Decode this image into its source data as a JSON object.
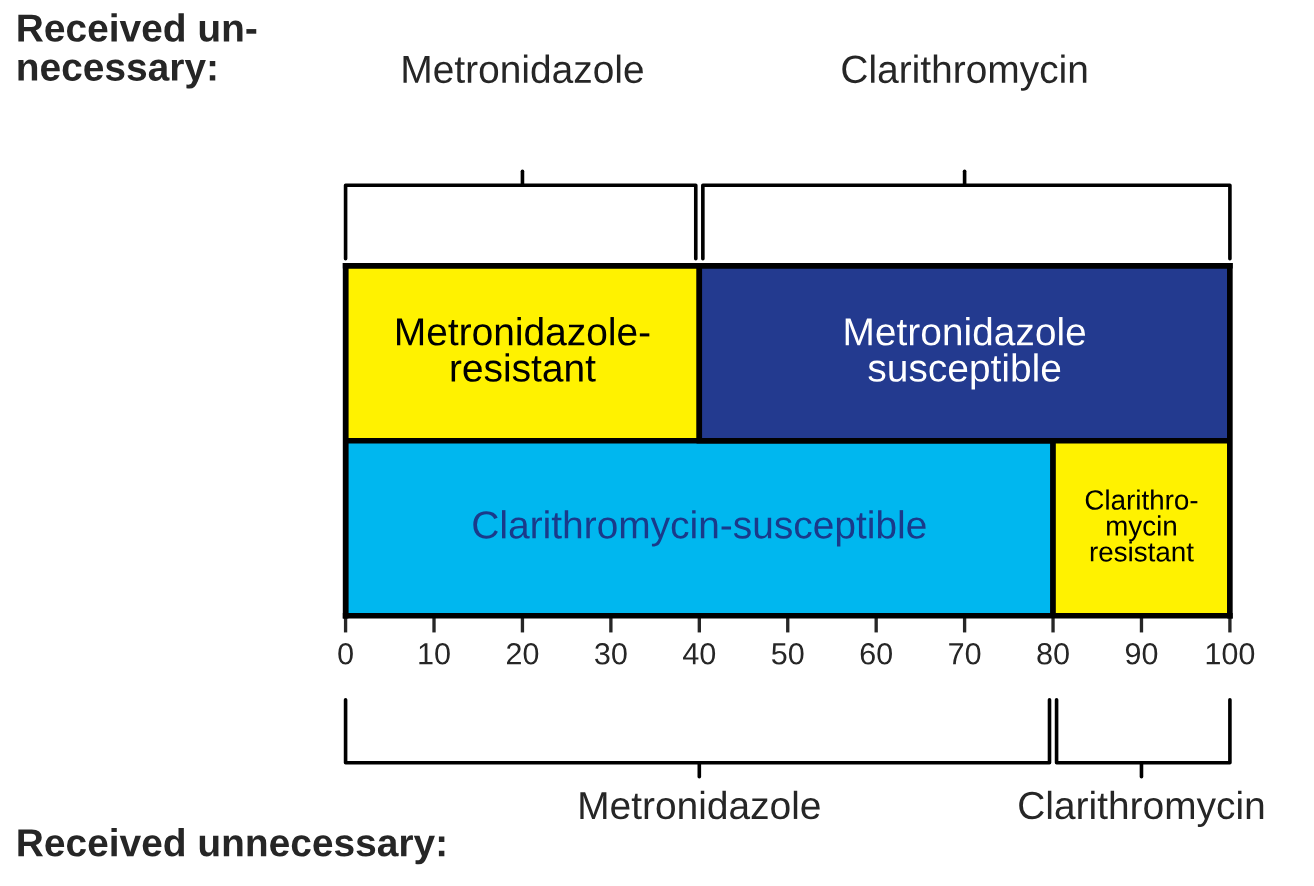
{
  "chart_data": {
    "type": "bar",
    "orientation": "horizontal",
    "stacked": true,
    "categories": [
      null,
      null
    ],
    "series": [
      {
        "colors": [
          "#fff200",
          "#00b7ef"
        ],
        "values": [
          40,
          80
        ],
        "value_labels": [
          "Metronidazole-\nresistant",
          "Clarithromycin-susceptible"
        ]
      },
      {
        "colors": [
          "#233a8f",
          "#fff200"
        ],
        "values": [
          60,
          20
        ],
        "value_labels": [
          "Metronidazole\nsusceptible",
          "Clarithro-\nmycin\nresistant"
        ]
      }
    ],
    "xlim": [
      0,
      100
    ],
    "xticks": [
      0,
      10,
      20,
      30,
      40,
      50,
      60,
      70,
      80,
      90,
      100
    ],
    "tick_labels": "x",
    "annotations": [
      "Received un-\nnecessary:",
      "Metronidazole",
      "Clarithromycin",
      "Received unnecessary:",
      "Metronidazole",
      "Clarithromycin"
    ]
  }
}
